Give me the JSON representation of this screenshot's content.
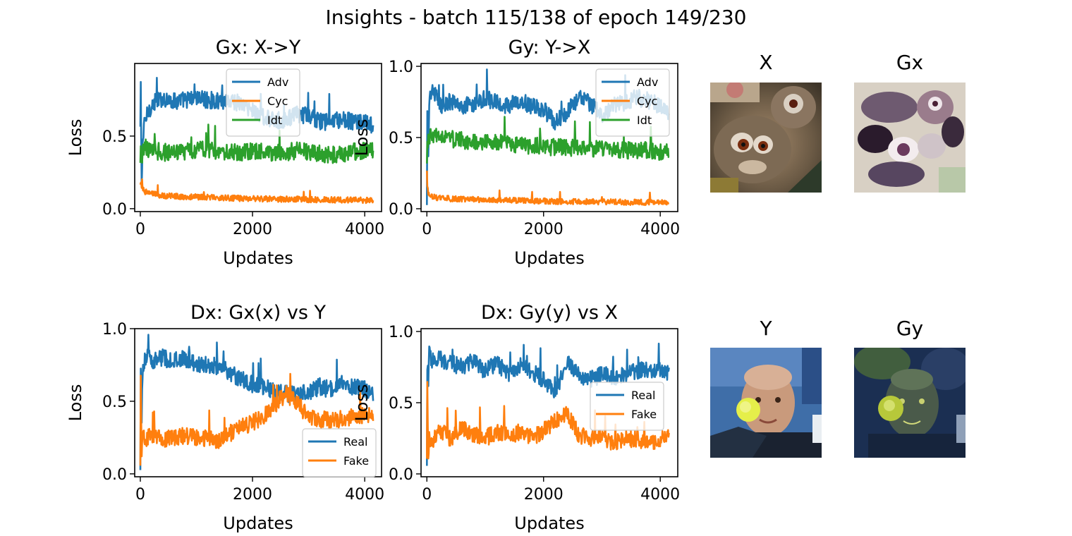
{
  "figure": {
    "suptitle": "Insights - batch 115/138 of epoch 149/230"
  },
  "chart_data": [
    {
      "type": "line",
      "title": "Gx: X->Y",
      "xlabel": "Updates",
      "ylabel": "Loss",
      "xticks": [
        0,
        2000,
        4000
      ],
      "yticks": [
        0.0,
        0.5
      ],
      "ytick_labels": [
        "0.0",
        "0.5"
      ],
      "xlim": [
        -100,
        4300
      ],
      "ylim": [
        -0.02,
        1.0
      ],
      "legend": "upper-center",
      "grid": false,
      "series": [
        {
          "name": "Adv",
          "color": "#1f77b4",
          "x": [
            0,
            10,
            20,
            40,
            80,
            150,
            250,
            400,
            600,
            800,
            1000,
            1200,
            1400,
            1600,
            1800,
            2000,
            2200,
            2400,
            2600,
            2800,
            3000,
            3200,
            3400,
            3600,
            3800,
            4000,
            4150
          ],
          "y": [
            0.55,
            0.95,
            0.1,
            0.45,
            0.6,
            0.68,
            0.73,
            0.76,
            0.74,
            0.75,
            0.76,
            0.75,
            0.74,
            0.75,
            0.72,
            0.68,
            0.63,
            0.6,
            0.62,
            0.65,
            0.64,
            0.6,
            0.6,
            0.61,
            0.6,
            0.59,
            0.57
          ]
        },
        {
          "name": "Cyc",
          "color": "#ff7f0e",
          "x": [
            0,
            10,
            20,
            40,
            80,
            150,
            250,
            400,
            600,
            800,
            1000,
            1200,
            1400,
            1600,
            1800,
            2000,
            2200,
            2400,
            2600,
            2800,
            3000,
            3200,
            3400,
            3600,
            3800,
            4000,
            4150
          ],
          "y": [
            0.15,
            0.25,
            0.2,
            0.14,
            0.12,
            0.11,
            0.1,
            0.09,
            0.085,
            0.08,
            0.08,
            0.078,
            0.075,
            0.075,
            0.07,
            0.07,
            0.068,
            0.066,
            0.065,
            0.065,
            0.063,
            0.062,
            0.062,
            0.06,
            0.06,
            0.058,
            0.058
          ]
        },
        {
          "name": "Idt",
          "color": "#2ca02c",
          "x": [
            0,
            10,
            20,
            40,
            80,
            150,
            250,
            400,
            600,
            800,
            1000,
            1200,
            1400,
            1600,
            1800,
            2000,
            2200,
            2400,
            2600,
            2800,
            3000,
            3200,
            3400,
            3600,
            3800,
            4000,
            4150
          ],
          "y": [
            0.3,
            0.45,
            0.25,
            0.38,
            0.42,
            0.41,
            0.4,
            0.39,
            0.38,
            0.39,
            0.4,
            0.41,
            0.4,
            0.39,
            0.38,
            0.4,
            0.39,
            0.38,
            0.39,
            0.4,
            0.39,
            0.38,
            0.37,
            0.38,
            0.39,
            0.4,
            0.41
          ]
        }
      ]
    },
    {
      "type": "line",
      "title": "Gy: Y->X",
      "xlabel": "Updates",
      "ylabel": "Loss",
      "xticks": [
        0,
        2000,
        4000
      ],
      "yticks": [
        0.0,
        0.5,
        1.0
      ],
      "ytick_labels": [
        "0.0",
        "0.5",
        "1.0"
      ],
      "xlim": [
        -100,
        4300
      ],
      "ylim": [
        -0.02,
        1.02
      ],
      "legend": "upper-right",
      "grid": false,
      "series": [
        {
          "name": "Adv",
          "color": "#1f77b4",
          "x": [
            0,
            10,
            20,
            40,
            80,
            150,
            250,
            400,
            600,
            800,
            1000,
            1200,
            1400,
            1600,
            1800,
            2000,
            2200,
            2400,
            2600,
            2800,
            3000,
            3200,
            3400,
            3600,
            3800,
            4000,
            4150
          ],
          "y": [
            0.02,
            0.8,
            0.3,
            0.75,
            0.85,
            0.8,
            0.72,
            0.75,
            0.72,
            0.74,
            0.78,
            0.74,
            0.72,
            0.76,
            0.72,
            0.7,
            0.6,
            0.68,
            0.78,
            0.74,
            0.66,
            0.72,
            0.75,
            0.78,
            0.76,
            0.72,
            0.68
          ]
        },
        {
          "name": "Cyc",
          "color": "#ff7f0e",
          "x": [
            0,
            10,
            20,
            40,
            80,
            150,
            250,
            400,
            600,
            800,
            1000,
            1200,
            1400,
            1600,
            1800,
            2000,
            2200,
            2400,
            2600,
            2800,
            3000,
            3200,
            3400,
            3600,
            3800,
            4000,
            4150
          ],
          "y": [
            0.25,
            0.15,
            0.12,
            0.1,
            0.09,
            0.08,
            0.075,
            0.07,
            0.068,
            0.065,
            0.065,
            0.06,
            0.06,
            0.058,
            0.055,
            0.055,
            0.052,
            0.05,
            0.05,
            0.05,
            0.048,
            0.048,
            0.046,
            0.046,
            0.045,
            0.045,
            0.045
          ]
        },
        {
          "name": "Idt",
          "color": "#2ca02c",
          "x": [
            0,
            10,
            20,
            40,
            80,
            150,
            250,
            400,
            600,
            800,
            1000,
            1200,
            1400,
            1600,
            1800,
            2000,
            2200,
            2400,
            2600,
            2800,
            3000,
            3200,
            3400,
            3600,
            3800,
            4000,
            4150
          ],
          "y": [
            0.3,
            0.45,
            0.48,
            0.5,
            0.52,
            0.51,
            0.5,
            0.49,
            0.48,
            0.47,
            0.47,
            0.46,
            0.46,
            0.45,
            0.44,
            0.44,
            0.43,
            0.43,
            0.43,
            0.42,
            0.42,
            0.42,
            0.41,
            0.41,
            0.41,
            0.4,
            0.4
          ]
        }
      ]
    },
    {
      "type": "line",
      "title": "Dx: Gx(x) vs Y",
      "xlabel": "Updates",
      "ylabel": "Loss",
      "xticks": [
        0,
        2000,
        4000
      ],
      "yticks": [
        0.0,
        0.5,
        1.0
      ],
      "ytick_labels": [
        "0.0",
        "0.5",
        "1.0"
      ],
      "xlim": [
        -100,
        4300
      ],
      "ylim": [
        -0.02,
        1.0
      ],
      "legend": "lower-right",
      "grid": false,
      "series": [
        {
          "name": "Real",
          "color": "#1f77b4",
          "x": [
            0,
            10,
            20,
            40,
            80,
            150,
            250,
            400,
            600,
            800,
            1000,
            1200,
            1400,
            1600,
            1800,
            2000,
            2200,
            2400,
            2600,
            2800,
            3000,
            3200,
            3400,
            3600,
            3800,
            4000,
            4150
          ],
          "y": [
            0.02,
            0.95,
            0.3,
            0.7,
            0.8,
            0.8,
            0.78,
            0.8,
            0.78,
            0.79,
            0.76,
            0.75,
            0.74,
            0.7,
            0.65,
            0.62,
            0.6,
            0.56,
            0.55,
            0.55,
            0.56,
            0.6,
            0.58,
            0.62,
            0.6,
            0.58,
            0.55
          ]
        },
        {
          "name": "Fake",
          "color": "#ff7f0e",
          "x": [
            0,
            10,
            20,
            40,
            80,
            150,
            250,
            400,
            600,
            800,
            1000,
            1200,
            1400,
            1600,
            1800,
            2000,
            2200,
            2400,
            2600,
            2800,
            3000,
            3200,
            3400,
            3600,
            3800,
            4000,
            4150
          ],
          "y": [
            0.05,
            0.8,
            0.1,
            0.3,
            0.22,
            0.25,
            0.26,
            0.24,
            0.25,
            0.26,
            0.25,
            0.24,
            0.22,
            0.28,
            0.32,
            0.35,
            0.4,
            0.48,
            0.55,
            0.48,
            0.4,
            0.38,
            0.36,
            0.38,
            0.4,
            0.4,
            0.42
          ]
        }
      ]
    },
    {
      "type": "line",
      "title": "Dx: Gy(y) vs X",
      "xlabel": "Updates",
      "ylabel": "Loss",
      "xticks": [
        0,
        2000,
        4000
      ],
      "yticks": [
        0.0,
        0.5,
        1.0
      ],
      "ytick_labels": [
        "0.0",
        "0.5",
        "1.0"
      ],
      "xlim": [
        -100,
        4300
      ],
      "ylim": [
        -0.02,
        1.02
      ],
      "legend": "center-right",
      "grid": false,
      "series": [
        {
          "name": "Real",
          "color": "#1f77b4",
          "x": [
            0,
            10,
            20,
            40,
            80,
            150,
            250,
            400,
            600,
            800,
            1000,
            1200,
            1400,
            1600,
            1800,
            2000,
            2200,
            2400,
            2600,
            2800,
            3000,
            3200,
            3400,
            3600,
            3800,
            4000,
            4150
          ],
          "y": [
            0.05,
            0.9,
            0.6,
            0.85,
            0.8,
            0.82,
            0.8,
            0.78,
            0.75,
            0.8,
            0.72,
            0.78,
            0.7,
            0.76,
            0.72,
            0.66,
            0.58,
            0.78,
            0.7,
            0.66,
            0.7,
            0.68,
            0.7,
            0.72,
            0.74,
            0.72,
            0.7
          ]
        },
        {
          "name": "Fake",
          "color": "#ff7f0e",
          "x": [
            0,
            10,
            20,
            40,
            80,
            150,
            250,
            400,
            600,
            800,
            1000,
            1200,
            1400,
            1600,
            1800,
            2000,
            2200,
            2400,
            2600,
            2800,
            3000,
            3200,
            3400,
            3600,
            3800,
            4000,
            4150
          ],
          "y": [
            0.1,
            0.85,
            0.05,
            0.25,
            0.2,
            0.28,
            0.3,
            0.25,
            0.32,
            0.28,
            0.25,
            0.3,
            0.26,
            0.3,
            0.25,
            0.3,
            0.38,
            0.42,
            0.28,
            0.24,
            0.26,
            0.22,
            0.25,
            0.24,
            0.22,
            0.24,
            0.25
          ]
        }
      ]
    }
  ],
  "images": [
    {
      "title": "X",
      "icon": "lemur-photo-icon"
    },
    {
      "title": "Gx",
      "icon": "lemur-translated-photo-icon"
    },
    {
      "title": "Y",
      "icon": "tennis-player-photo-icon"
    },
    {
      "title": "Gy",
      "icon": "tennis-player-translated-photo-icon"
    }
  ]
}
